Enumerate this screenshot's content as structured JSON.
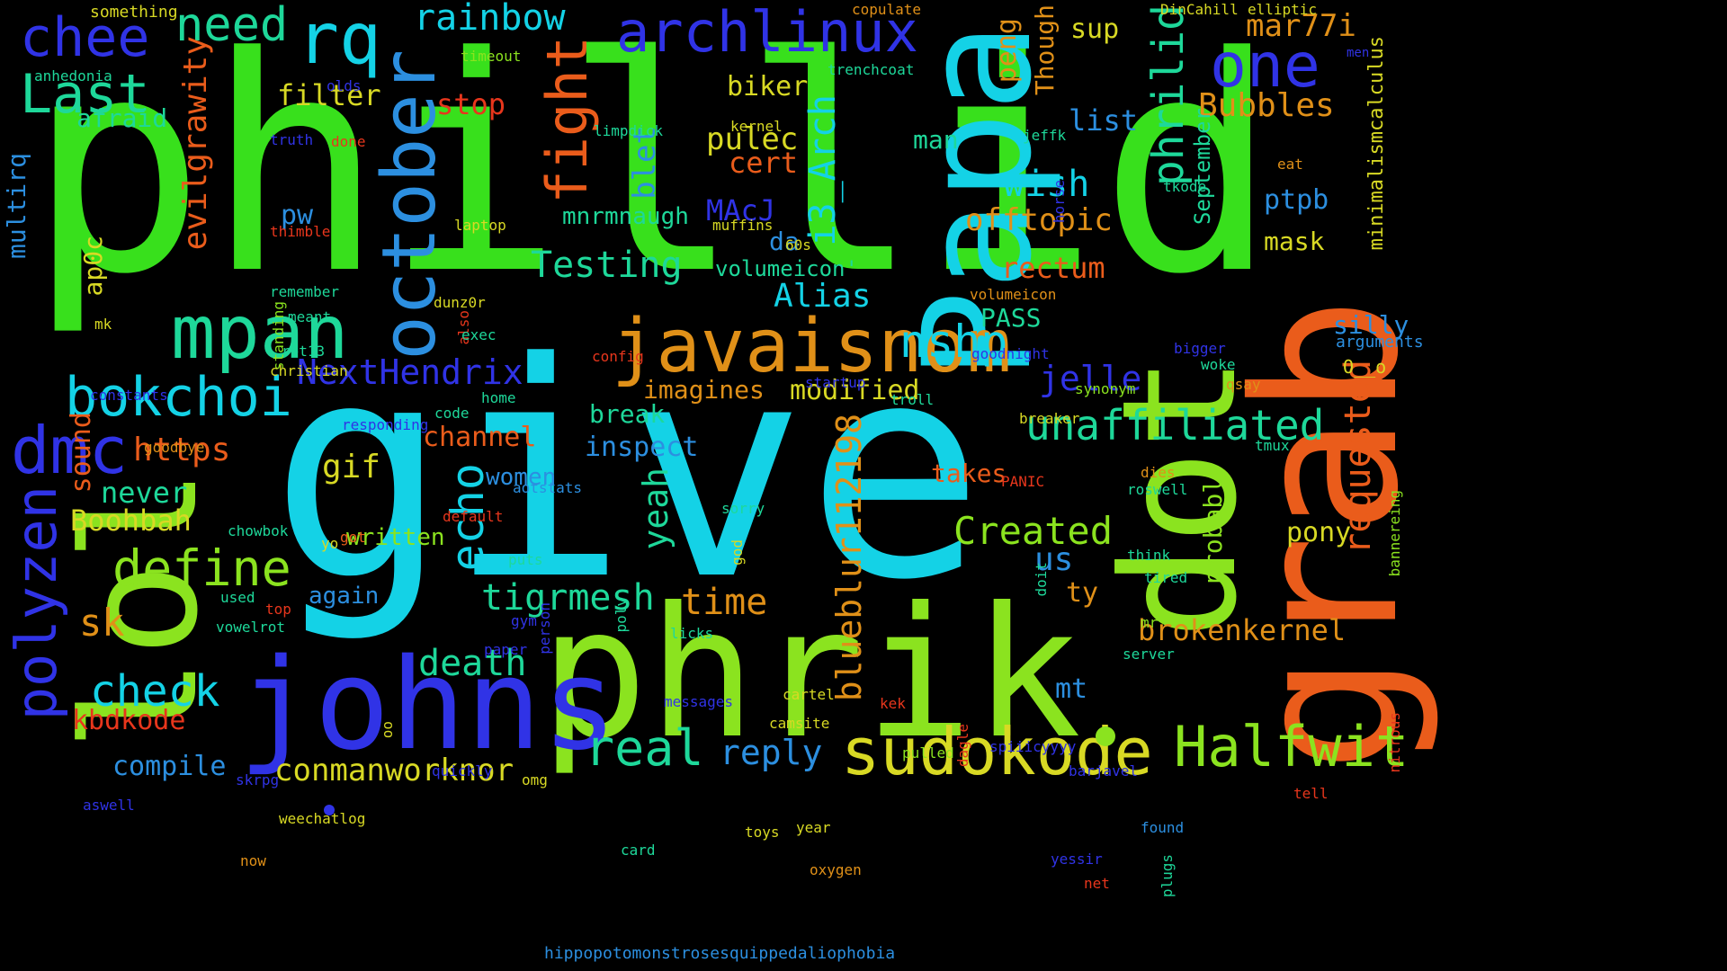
{
  "background": "#000000",
  "colors": {
    "green": "#38e01c",
    "cyan": "#14d2e6",
    "orange": "#ea5c1b",
    "lime": "#8be31f",
    "blue": "#3033e6",
    "teal": "#1ed89a",
    "yellow": "#d8d924",
    "amber": "#e09018",
    "sky": "#2c8fe0",
    "red": "#e8361c"
  },
  "words": [
    {
      "text": "phillid",
      "color": "green"
    },
    {
      "text": "give",
      "color": "cyan"
    },
    {
      "text": "phrik",
      "color": "lime"
    },
    {
      "text": "johns",
      "color": "blue"
    },
    {
      "text": "grab",
      "color": "orange"
    },
    {
      "text": "dot",
      "color": "lime"
    },
    {
      "text": "Papa",
      "color": "cyan"
    },
    {
      "text": "lol",
      "color": "lime"
    },
    {
      "text": "javaisnom",
      "color": "amber"
    },
    {
      "text": "sudokode",
      "color": "yellow"
    },
    {
      "text": "Halfwit",
      "color": "lime"
    },
    {
      "text": "mpan",
      "color": "teal"
    },
    {
      "text": "october",
      "color": "sky"
    },
    {
      "text": "archlinux",
      "color": "blue"
    },
    {
      "text": "rq",
      "color": "cyan"
    },
    {
      "text": "chee",
      "color": "blue"
    },
    {
      "text": "need",
      "color": "teal"
    },
    {
      "text": "Last",
      "color": "teal"
    },
    {
      "text": "bokchoi",
      "color": "cyan"
    },
    {
      "text": "dmc",
      "color": "blue"
    },
    {
      "text": "polyzen",
      "color": "blue"
    },
    {
      "text": "define",
      "color": "lime"
    },
    {
      "text": "fight",
      "color": "orange"
    },
    {
      "text": "one",
      "color": "blue"
    },
    {
      "text": "rainbow",
      "color": "cyan"
    },
    {
      "text": "phrilid",
      "color": "teal"
    },
    {
      "text": "requested",
      "color": "orange"
    },
    {
      "text": "unaffiliated",
      "color": "teal"
    },
    {
      "text": "nshp",
      "color": "cyan"
    },
    {
      "text": "echo",
      "color": "cyan"
    },
    {
      "text": "real",
      "color": "teal"
    },
    {
      "text": "check",
      "color": "cyan"
    },
    {
      "text": "evilgrawity",
      "color": "orange"
    },
    {
      "text": "tigrmesh",
      "color": "teal"
    },
    {
      "text": "blueblur112198",
      "color": "amber"
    },
    {
      "text": "i3_Arch",
      "color": "cyan"
    },
    {
      "text": "Created",
      "color": "lime"
    },
    {
      "text": "Testing",
      "color": "teal"
    },
    {
      "text": "NextHendrix",
      "color": "blue"
    },
    {
      "text": "death",
      "color": "teal"
    },
    {
      "text": "conmanworknor",
      "color": "yellow"
    },
    {
      "text": "reply",
      "color": "sky"
    },
    {
      "text": "time",
      "color": "amber"
    },
    {
      "text": "yeah",
      "color": "teal"
    },
    {
      "text": "jelle",
      "color": "blue"
    },
    {
      "text": "brokenkernel",
      "color": "amber"
    },
    {
      "text": "Bubbles",
      "color": "amber"
    },
    {
      "text": "mar77i",
      "color": "amber"
    },
    {
      "text": "wish",
      "color": "cyan"
    },
    {
      "text": "offtopic",
      "color": "amber"
    },
    {
      "text": "rectum",
      "color": "orange"
    },
    {
      "text": "Alias",
      "color": "cyan"
    },
    {
      "text": "modified",
      "color": "yellow"
    },
    {
      "text": "https",
      "color": "orange"
    },
    {
      "text": "channel",
      "color": "orange"
    },
    {
      "text": "inspect",
      "color": "sky"
    },
    {
      "text": "break",
      "color": "teal"
    },
    {
      "text": "imagines",
      "color": "amber"
    },
    {
      "text": "pulec",
      "color": "yellow"
    },
    {
      "text": "cert",
      "color": "orange"
    },
    {
      "text": "biker",
      "color": "yellow"
    },
    {
      "text": "filter",
      "color": "yellow"
    },
    {
      "text": "stop",
      "color": "red"
    },
    {
      "text": "afraid",
      "color": "teal"
    },
    {
      "text": "list",
      "color": "sky"
    },
    {
      "text": "sup",
      "color": "yellow"
    },
    {
      "text": "peng",
      "color": "amber"
    },
    {
      "text": "Though",
      "color": "amber"
    },
    {
      "text": "blet",
      "color": "sky"
    },
    {
      "text": "mnrmnaugh",
      "color": "teal"
    },
    {
      "text": "MAcJ",
      "color": "blue"
    },
    {
      "text": "pw",
      "color": "sky"
    },
    {
      "text": "da",
      "color": "sky"
    },
    {
      "text": "volumeicon'",
      "color": "teal"
    },
    {
      "text": "PASS",
      "color": "teal"
    },
    {
      "text": "man",
      "color": "teal"
    },
    {
      "text": "ptpb",
      "color": "sky"
    },
    {
      "text": "mask",
      "color": "yellow"
    },
    {
      "text": "September",
      "color": "teal"
    },
    {
      "text": "minimalismcalculus",
      "color": "yellow"
    },
    {
      "text": "silly",
      "color": "sky"
    },
    {
      "text": "arguments",
      "color": "sky"
    },
    {
      "text": "O__o",
      "color": "yellow"
    },
    {
      "text": "pony",
      "color": "yellow"
    },
    {
      "text": "probably",
      "color": "lime"
    },
    {
      "text": "us",
      "color": "sky"
    },
    {
      "text": "ty",
      "color": "amber"
    },
    {
      "text": "mt",
      "color": "sky"
    },
    {
      "text": "takes",
      "color": "orange"
    },
    {
      "text": "gif",
      "color": "yellow"
    },
    {
      "text": "women",
      "color": "sky"
    },
    {
      "text": "written",
      "color": "lime"
    },
    {
      "text": "again",
      "color": "sky"
    },
    {
      "text": "never",
      "color": "teal"
    },
    {
      "text": "Boohbah",
      "color": "yellow"
    },
    {
      "text": "sk",
      "color": "amber"
    },
    {
      "text": "sound",
      "color": "orange"
    },
    {
      "text": "kbdkode",
      "color": "red"
    },
    {
      "text": "compile",
      "color": "sky"
    },
    {
      "text": "multirq",
      "color": "sky"
    },
    {
      "text": "ap0c",
      "color": "yellow"
    },
    {
      "text": "something",
      "color": "yellow"
    },
    {
      "text": "anhedonia",
      "color": "teal"
    },
    {
      "text": "timeout",
      "color": "lime"
    },
    {
      "text": "olds",
      "color": "blue"
    },
    {
      "text": "truth",
      "color": "blue"
    },
    {
      "text": "done",
      "color": "red"
    },
    {
      "text": "limpdick",
      "color": "teal"
    },
    {
      "text": "kernel",
      "color": "yellow"
    },
    {
      "text": "copulate",
      "color": "amber"
    },
    {
      "text": "trenchcoat",
      "color": "teal"
    },
    {
      "text": "DinCahill",
      "color": "yellow"
    },
    {
      "text": "elliptic",
      "color": "yellow"
    },
    {
      "text": "men",
      "color": "blue"
    },
    {
      "text": "jeffk",
      "color": "teal"
    },
    {
      "text": "eat",
      "color": "amber"
    },
    {
      "text": "tkode",
      "color": "teal"
    },
    {
      "text": "horse",
      "color": "blue"
    },
    {
      "text": "muffins",
      "color": "yellow"
    },
    {
      "text": "60s",
      "color": "yellow"
    },
    {
      "text": "laptop",
      "color": "yellow"
    },
    {
      "text": "thimble",
      "color": "red"
    },
    {
      "text": "remember",
      "color": "teal"
    },
    {
      "text": "meant",
      "color": "teal"
    },
    {
      "text": "mk",
      "color": "yellow"
    },
    {
      "text": "standing",
      "color": "lime"
    },
    {
      "text": "also",
      "color": "red"
    },
    {
      "text": "dunz0r",
      "color": "yellow"
    },
    {
      "text": "exec",
      "color": "teal"
    },
    {
      "text": "config",
      "color": "red"
    },
    {
      "text": "rot13",
      "color": "teal"
    },
    {
      "text": "christian",
      "color": "yellow"
    },
    {
      "text": "constants",
      "color": "blue"
    },
    {
      "text": "home",
      "color": "teal"
    },
    {
      "text": "startup",
      "color": "blue"
    },
    {
      "text": "troll",
      "color": "teal"
    },
    {
      "text": "volumeicon",
      "color": "amber"
    },
    {
      "text": "goodnight",
      "color": "blue"
    },
    {
      "text": "bigger",
      "color": "blue"
    },
    {
      "text": "woke",
      "color": "teal"
    },
    {
      "text": "qsay",
      "color": "amber"
    },
    {
      "text": "synonym",
      "color": "lime"
    },
    {
      "text": "breaker",
      "color": "yellow"
    },
    {
      "text": "responding",
      "color": "blue"
    },
    {
      "text": "code",
      "color": "teal"
    },
    {
      "text": "goodbye",
      "color": "amber"
    },
    {
      "text": "aotstats",
      "color": "sky"
    },
    {
      "text": "PANIC",
      "color": "red"
    },
    {
      "text": "roswell",
      "color": "teal"
    },
    {
      "text": "dies",
      "color": "amber"
    },
    {
      "text": "tmux",
      "color": "teal"
    },
    {
      "text": "default",
      "color": "red"
    },
    {
      "text": "sorry",
      "color": "teal"
    },
    {
      "text": "chowbok",
      "color": "teal"
    },
    {
      "text": "got",
      "color": "orange"
    },
    {
      "text": "yo",
      "color": "yellow"
    },
    {
      "text": "puts",
      "color": "teal"
    },
    {
      "text": "god",
      "color": "yellow"
    },
    {
      "text": "think",
      "color": "teal"
    },
    {
      "text": "tired",
      "color": "teal"
    },
    {
      "text": "bannereing",
      "color": "lime"
    },
    {
      "text": "doit",
      "color": "teal"
    },
    {
      "text": "used",
      "color": "teal"
    },
    {
      "text": "top",
      "color": "red"
    },
    {
      "text": "gym",
      "color": "blue"
    },
    {
      "text": "paper",
      "color": "blue"
    },
    {
      "text": "person",
      "color": "blue"
    },
    {
      "text": "poly",
      "color": "teal"
    },
    {
      "text": "mr",
      "color": "lime"
    },
    {
      "text": "server",
      "color": "teal"
    },
    {
      "text": "vowelrot",
      "color": "teal"
    },
    {
      "text": "licks",
      "color": "teal"
    },
    {
      "text": "messages",
      "color": "blue"
    },
    {
      "text": "cartel",
      "color": "yellow"
    },
    {
      "text": "camsite",
      "color": "yellow"
    },
    {
      "text": "kek",
      "color": "red"
    },
    {
      "text": "id",
      "color": "lime"
    },
    {
      "text": "pulled",
      "color": "lime"
    },
    {
      "text": "dagle",
      "color": "red"
    },
    {
      "text": "spiiicyyyy",
      "color": "blue"
    },
    {
      "text": "nitrous",
      "color": "red"
    },
    {
      "text": "oo",
      "color": "yellow"
    },
    {
      "text": "quickly",
      "color": "blue"
    },
    {
      "text": "skrpg",
      "color": "blue"
    },
    {
      "text": "omg",
      "color": "yellow"
    },
    {
      "text": "aswell",
      "color": "blue"
    },
    {
      "text": "weechatlog",
      "color": "yellow"
    },
    {
      "text": "barjavel",
      "color": "blue"
    },
    {
      "text": "tell",
      "color": "red"
    },
    {
      "text": "toys",
      "color": "yellow"
    },
    {
      "text": "year",
      "color": "yellow"
    },
    {
      "text": "found",
      "color": "sky"
    },
    {
      "text": "card",
      "color": "teal"
    },
    {
      "text": "now",
      "color": "amber"
    },
    {
      "text": "oxygen",
      "color": "amber"
    },
    {
      "text": "yessir",
      "color": "blue"
    },
    {
      "text": "net",
      "color": "red"
    },
    {
      "text": "plugs",
      "color": "teal"
    },
    {
      "text": "hippopotomonstrosesquippedaliophobia",
      "color": "sky"
    }
  ]
}
